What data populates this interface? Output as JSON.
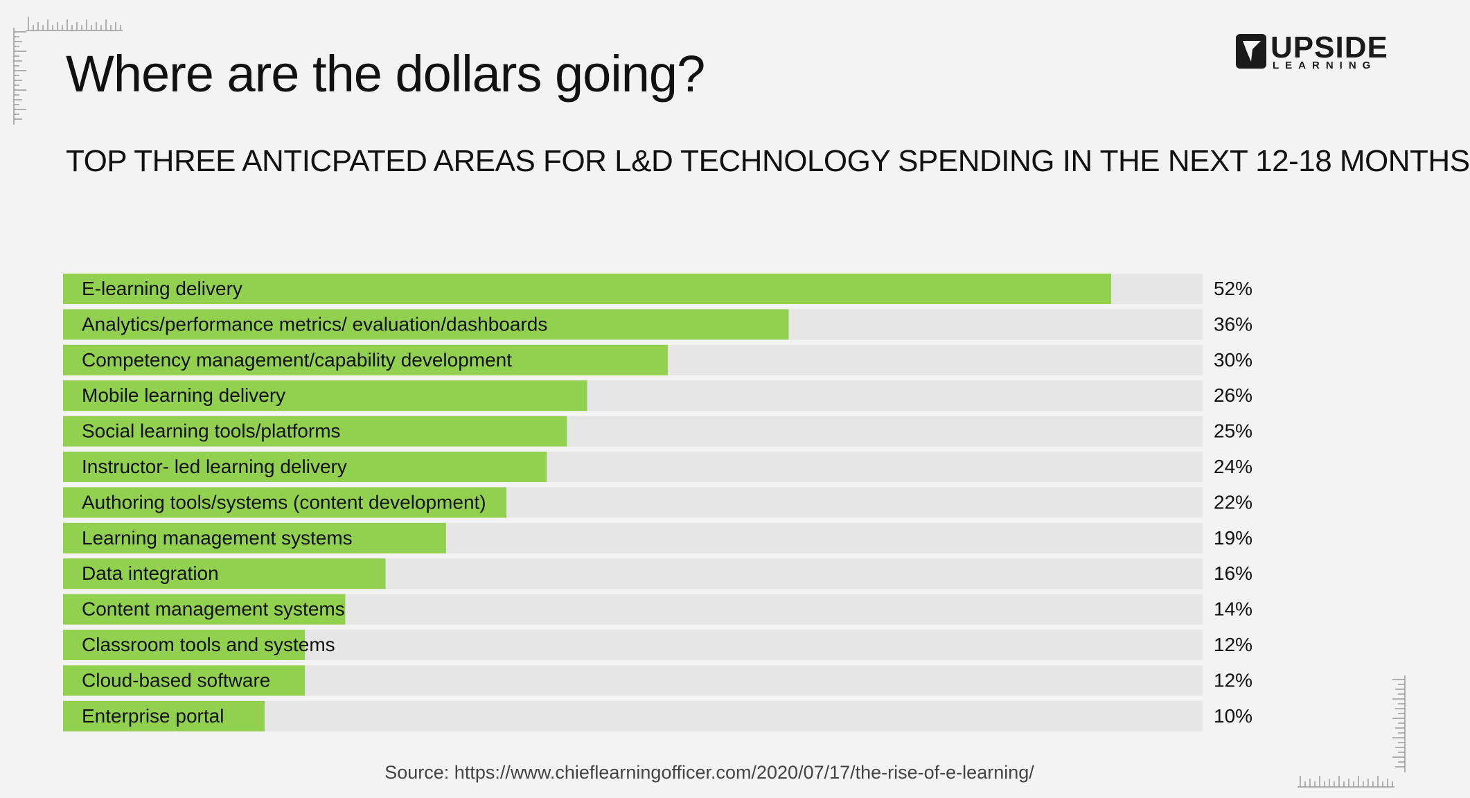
{
  "header": {
    "title": "Where are the dollars going?",
    "logo": {
      "brand": "UPSIDE",
      "sub": "LEARNING",
      "icon": "arrow-cursor-icon"
    }
  },
  "colors": {
    "bar_fill": "#92d050",
    "bar_track": "#e6e6e6",
    "background": "#f3f3f3"
  },
  "chart_data": {
    "type": "bar",
    "orientation": "horizontal",
    "title": "TOP THREE ANTICPATED AREAS FOR L&D TECHNOLOGY SPENDING IN THE NEXT 12-18 MONTHS",
    "categories": [
      "E-learning delivery",
      "Analytics/performance metrics/ evaluation/dashboards",
      "Competency management/capability development",
      "Mobile learning delivery",
      "Social learning tools/platforms",
      "Instructor- led learning delivery",
      "Authoring tools/systems (content development)",
      "Learning management systems",
      "Data integration",
      "Content management systems",
      "Classroom tools and systems",
      "Cloud-based software",
      "Enterprise portal"
    ],
    "values": [
      52,
      36,
      30,
      26,
      25,
      24,
      22,
      19,
      16,
      14,
      12,
      12,
      10
    ],
    "value_labels": [
      "52%",
      "36%",
      "30%",
      "26%",
      "25%",
      "24%",
      "22%",
      "19%",
      "16%",
      "14%",
      "12%",
      "12%",
      "10%"
    ],
    "xlim": [
      0,
      60
    ],
    "grid": false,
    "legend": "none"
  },
  "footer": {
    "source": "Source: https://www.chieflearningofficer.com/2020/07/17/the-rise-of-e-learning/"
  }
}
